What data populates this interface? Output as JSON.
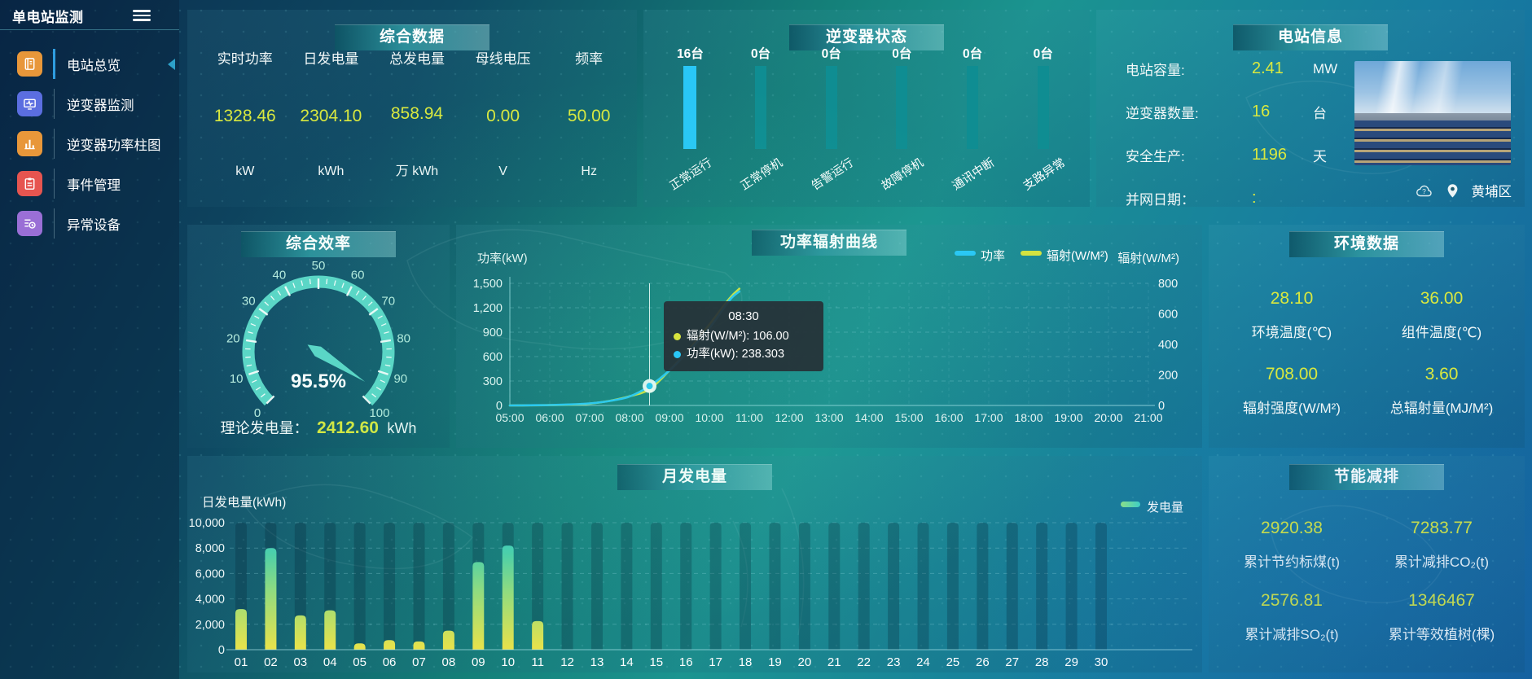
{
  "app": {
    "title": "单电站监测"
  },
  "sidebar": {
    "items": [
      {
        "key": "station-overview",
        "label": "电站总览",
        "icon": "journal-icon",
        "color": "#e8973a",
        "active": true
      },
      {
        "key": "inverter-monitoring",
        "label": "逆变器监测",
        "icon": "monitor-pulse-icon",
        "color": "#5b6ee0",
        "active": false
      },
      {
        "key": "inverter-power-bars",
        "label": "逆变器功率柱图",
        "icon": "bar-chart-icon",
        "color": "#e8973a",
        "active": false
      },
      {
        "key": "event-management",
        "label": "事件管理",
        "icon": "clipboard-icon",
        "color": "#e65550",
        "active": false
      },
      {
        "key": "abnormal-devices",
        "label": "异常设备",
        "icon": "list-clock-icon",
        "color": "#9a6fd6",
        "active": false
      }
    ]
  },
  "panels": {
    "summary": {
      "title": "综合数据",
      "metrics": [
        {
          "label": "实时功率",
          "value": "1328.46",
          "unit": "kW"
        },
        {
          "label": "日发电量",
          "value": "2304.10",
          "unit": "kWh"
        },
        {
          "label": "总发电量",
          "value": "858.94",
          "unit": "万 kWh"
        },
        {
          "label": "母线电压",
          "value": "0.00",
          "unit": "V"
        },
        {
          "label": "频率",
          "value": "50.00",
          "unit": "Hz"
        }
      ]
    },
    "inverter_status": {
      "title": "逆变器状态",
      "count_suffix": "台"
    },
    "station_info": {
      "title": "电站信息",
      "rows": [
        {
          "label": "电站容量:",
          "value": "2.41",
          "unit": "MW"
        },
        {
          "label": "逆变器数量:",
          "value": "16",
          "unit": "台"
        },
        {
          "label": "安全生产:",
          "value": "1196",
          "unit": "天"
        },
        {
          "label": "并网日期：",
          "value": ":",
          "unit": ""
        }
      ],
      "location": "黄埔区"
    },
    "efficiency": {
      "title": "综合效率",
      "theoretical_label": "理论发电量：",
      "theoretical_value": "2412.60",
      "theoretical_unit": "kWh"
    },
    "power_radiation": {
      "title": "功率辐射曲线",
      "tooltip": {
        "time": "08:30",
        "radiation": "辐射(W/M²): 106.00",
        "power": "功率(kW): 238.303"
      }
    },
    "environment": {
      "title": "环境数据",
      "metrics": [
        {
          "value": "28.10",
          "label": "环境温度(℃)"
        },
        {
          "value": "36.00",
          "label": "组件温度(℃)"
        },
        {
          "value": "708.00",
          "label": "辐射强度(W/M²)"
        },
        {
          "value": "3.60",
          "label": "总辐射量(MJ/M²)"
        }
      ]
    },
    "monthly": {
      "title": "月发电量"
    },
    "savings": {
      "title": "节能减排",
      "metrics": [
        {
          "value": "2920.38",
          "label": "累计节约标煤(t)"
        },
        {
          "value": "7283.77",
          "label": "累计减排CO₂(t)"
        },
        {
          "value": "2576.81",
          "label": "累计减排SO₂(t)"
        },
        {
          "value": "1346467",
          "label": "累计等效植树(棵)"
        }
      ]
    }
  },
  "colors": {
    "value_yellow": "#d9e83f",
    "power_blue": "#29c7f7",
    "radiation_yellow": "#d6e33e",
    "status_track_teal": "#0f8d92",
    "status_highlight_cyan": "#29c7f7",
    "gauge_teal": "#5cd6c7"
  },
  "chart_data": [
    {
      "id": "inverter_status",
      "type": "bar",
      "title": "逆变器状态",
      "categories": [
        "正常运行",
        "正常停机",
        "告警运行",
        "故障停机",
        "通讯中断",
        "支路异常"
      ],
      "values": [
        16,
        0,
        0,
        0,
        0,
        0
      ],
      "unit": "台",
      "highlight_color": "#29c7f7",
      "track_color": "#0f8d92"
    },
    {
      "id": "efficiency_gauge",
      "type": "gauge",
      "title": "综合效率",
      "value": 95.5,
      "display": "95.5%",
      "min": 0,
      "max": 100,
      "major_tick": 10,
      "minor_tick": 2.5,
      "tick_labels": [
        "0",
        "10",
        "20",
        "30",
        "40",
        "50",
        "60",
        "70",
        "80",
        "90",
        "100"
      ]
    },
    {
      "id": "power_radiation",
      "type": "line",
      "title": "功率辐射曲线",
      "left_axis_name": "功率(kW)",
      "right_axis_name": "辐射(W/M²)",
      "left_ylim": [
        0,
        1500
      ],
      "right_ylim": [
        0,
        800
      ],
      "left_ticks": [
        "0",
        "300",
        "600",
        "900",
        "1,200",
        "1,500"
      ],
      "right_ticks": [
        "0",
        "200",
        "400",
        "600",
        "800"
      ],
      "x_ticks": [
        "05:00",
        "06:00",
        "07:00",
        "08:00",
        "09:00",
        "10:00",
        "11:00",
        "12:00",
        "13:00",
        "14:00",
        "15:00",
        "16:00",
        "17:00",
        "18:00",
        "19:00",
        "20:00",
        "21:00"
      ],
      "x_range_minutes": [
        0,
        960
      ],
      "series": [
        {
          "name": "功率",
          "color": "#29c7f7",
          "axis": "left",
          "points": [
            [
              "05:00",
              0
            ],
            [
              "05:30",
              2
            ],
            [
              "06:00",
              5
            ],
            [
              "06:30",
              12
            ],
            [
              "07:00",
              25
            ],
            [
              "07:30",
              55
            ],
            [
              "08:00",
              110
            ],
            [
              "08:30",
              238.303
            ],
            [
              "09:00",
              430
            ],
            [
              "09:30",
              680
            ],
            [
              "10:00",
              950
            ],
            [
              "10:30",
              1290
            ],
            [
              "10:45",
              1400
            ]
          ]
        },
        {
          "name": "辐射(W/M²)",
          "color": "#d6e33e",
          "axis": "right",
          "points": [
            [
              "05:00",
              0
            ],
            [
              "05:30",
              1
            ],
            [
              "06:00",
              2
            ],
            [
              "06:30",
              5
            ],
            [
              "07:00",
              12
            ],
            [
              "07:30",
              30
            ],
            [
              "08:00",
              60
            ],
            [
              "08:30",
              106
            ],
            [
              "09:00",
              230
            ],
            [
              "09:30",
              370
            ],
            [
              "10:00",
              530
            ],
            [
              "10:30",
              700
            ],
            [
              "10:45",
              765
            ]
          ]
        }
      ],
      "hover": {
        "time": "08:30",
        "power": 238.303,
        "radiation": 106
      },
      "legend_position": "top-right",
      "grid": "dashed"
    },
    {
      "id": "monthly_energy",
      "type": "bar",
      "title": "月发电量",
      "axis_name": "日发电量(kWh)",
      "legend": "发电量",
      "ylim": [
        0,
        10000
      ],
      "y_ticks": [
        "0",
        "2,000",
        "4,000",
        "6,000",
        "8,000",
        "10,000"
      ],
      "categories": [
        "01",
        "02",
        "03",
        "04",
        "05",
        "06",
        "07",
        "08",
        "09",
        "10",
        "11",
        "12",
        "13",
        "14",
        "15",
        "16",
        "17",
        "18",
        "19",
        "20",
        "21",
        "22",
        "23",
        "24",
        "25",
        "26",
        "27",
        "28",
        "29",
        "30"
      ],
      "values": [
        3200,
        8000,
        2700,
        3100,
        500,
        750,
        650,
        1500,
        6900,
        8200,
        2250,
        0,
        0,
        0,
        0,
        0,
        0,
        0,
        0,
        0,
        0,
        0,
        0,
        0,
        0,
        0,
        0,
        0,
        0,
        0
      ],
      "grid": "dashed"
    }
  ]
}
